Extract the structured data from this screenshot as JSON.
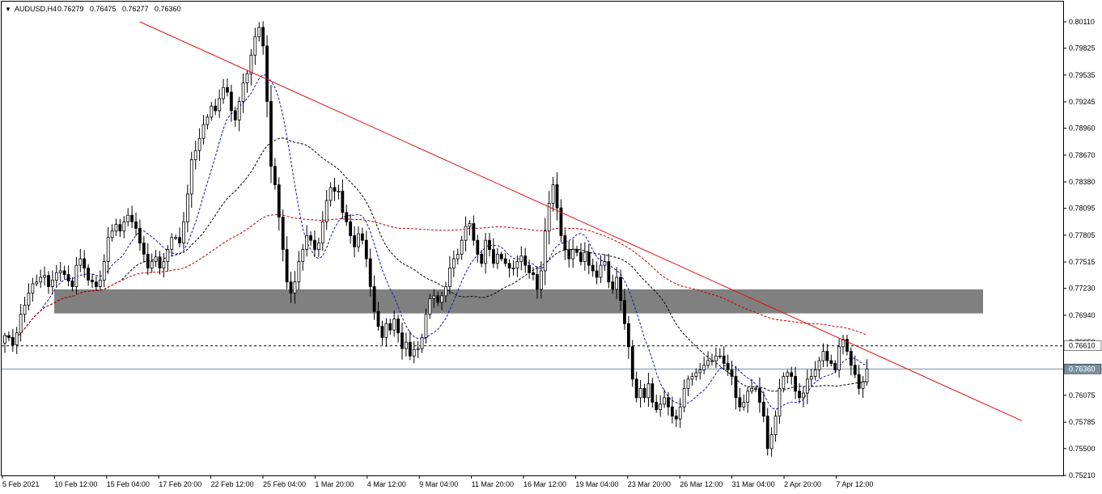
{
  "header": {
    "menu_glyph": "▼",
    "symbol": "AUDUSD,H4",
    "ohlc": [
      "0.76279",
      "0.76475",
      "0.76277",
      "0.76360"
    ]
  },
  "price_axis": {
    "ticks": [
      "0.80110",
      "0.79825",
      "0.79535",
      "0.79245",
      "0.78960",
      "0.78670",
      "0.78380",
      "0.78095",
      "0.77805",
      "0.77515",
      "0.77230",
      "0.76940",
      "0.76650",
      "0.76075",
      "0.75785",
      "0.75500",
      "0.75210"
    ],
    "h_line_label": "0.76610",
    "bid_label": "0.76360"
  },
  "time_axis": {
    "labels": [
      "5 Feb 2021",
      "10 Feb 12:00",
      "15 Feb 04:00",
      "17 Feb 20:00",
      "22 Feb 12:00",
      "25 Feb 04:00",
      "1 Mar 20:00",
      "4 Mar 12:00",
      "9 Mar 04:00",
      "11 Mar 20:00",
      "16 Mar 12:00",
      "19 Mar 04:00",
      "23 Mar 20:00",
      "26 Mar 12:00",
      "31 Mar 04:00",
      "2 Apr 20:00",
      "7 Apr 12:00"
    ]
  },
  "colors": {
    "trendline": "#e01010",
    "zone": "#808080",
    "ma_fast": "#1010c0",
    "ma_mid": "#000000",
    "ma_slow": "#c00000",
    "candle_bear": "#000000",
    "candle_bull": "#ffffff",
    "bid_line": "#7890a0"
  },
  "chart_data": {
    "type": "candlestick",
    "ylim": [
      0.7521,
      0.8011
    ],
    "h_line": 0.7661,
    "bid": 0.7636,
    "zone": [
      0.7696,
      0.7722
    ],
    "trendline": [
      [
        34,
        0.8011
      ],
      [
        256,
        0.758
      ]
    ],
    "closes": [
      0.7672,
      0.767,
      0.7662,
      0.7675,
      0.7695,
      0.7705,
      0.7718,
      0.7728,
      0.773,
      0.7735,
      0.7737,
      0.7725,
      0.7732,
      0.774,
      0.7742,
      0.7738,
      0.7731,
      0.7725,
      0.7748,
      0.7755,
      0.7745,
      0.7732,
      0.773,
      0.7725,
      0.7732,
      0.7752,
      0.7778,
      0.7785,
      0.7792,
      0.7785,
      0.7795,
      0.7802,
      0.7795,
      0.7788,
      0.7772,
      0.776,
      0.7745,
      0.7752,
      0.7757,
      0.7745,
      0.7752,
      0.7765,
      0.7778,
      0.7778,
      0.7772,
      0.7795,
      0.7825,
      0.7862,
      0.7872,
      0.7885,
      0.79,
      0.7908,
      0.792,
      0.7915,
      0.7928,
      0.794,
      0.7935,
      0.7915,
      0.7905,
      0.7925,
      0.7945,
      0.7955,
      0.7975,
      0.7995,
      0.8005,
      0.7985,
      0.7925,
      0.7855,
      0.7835,
      0.78,
      0.7765,
      0.773,
      0.7718,
      0.773,
      0.7752,
      0.7765,
      0.778,
      0.7775,
      0.7765,
      0.7772,
      0.7795,
      0.7818,
      0.7832,
      0.7828,
      0.7828,
      0.7805,
      0.7795,
      0.778,
      0.7768,
      0.7782,
      0.7775,
      0.7755,
      0.7725,
      0.7698,
      0.7682,
      0.767,
      0.7685,
      0.7678,
      0.769,
      0.7675,
      0.7658,
      0.7665,
      0.765,
      0.7657,
      0.7658,
      0.767,
      0.7695,
      0.7712,
      0.7715,
      0.7708,
      0.7715,
      0.7725,
      0.7745,
      0.7755,
      0.776,
      0.7775,
      0.779,
      0.7793,
      0.7775,
      0.776,
      0.775,
      0.7775,
      0.7765,
      0.775,
      0.776,
      0.7755,
      0.775,
      0.7745,
      0.7745,
      0.7752,
      0.7758,
      0.7748,
      0.774,
      0.7738,
      0.7722,
      0.7742,
      0.7785,
      0.7815,
      0.7835,
      0.781,
      0.778,
      0.7765,
      0.7755,
      0.7765,
      0.7762,
      0.7752,
      0.7762,
      0.7748,
      0.7742,
      0.7735,
      0.7748,
      0.7752,
      0.773,
      0.7722,
      0.7735,
      0.771,
      0.7685,
      0.766,
      0.7625,
      0.7605,
      0.7615,
      0.7605,
      0.762,
      0.76,
      0.7592,
      0.7598,
      0.7605,
      0.7595,
      0.7585,
      0.7582,
      0.7595,
      0.7615,
      0.7625,
      0.7628,
      0.7632,
      0.7635,
      0.764,
      0.7645,
      0.7645,
      0.765,
      0.765,
      0.7642,
      0.7635,
      0.7628,
      0.7605,
      0.7595,
      0.76,
      0.7612,
      0.7615,
      0.7615,
      0.76,
      0.7585,
      0.755,
      0.7565,
      0.7585,
      0.7615,
      0.7628,
      0.7632,
      0.7628,
      0.7612,
      0.7605,
      0.761,
      0.7625,
      0.7628,
      0.7635,
      0.7645,
      0.7655,
      0.7645,
      0.7642,
      0.7635,
      0.766,
      0.7668,
      0.7655,
      0.764,
      0.763,
      0.7615,
      0.7622,
      0.7636
    ]
  }
}
